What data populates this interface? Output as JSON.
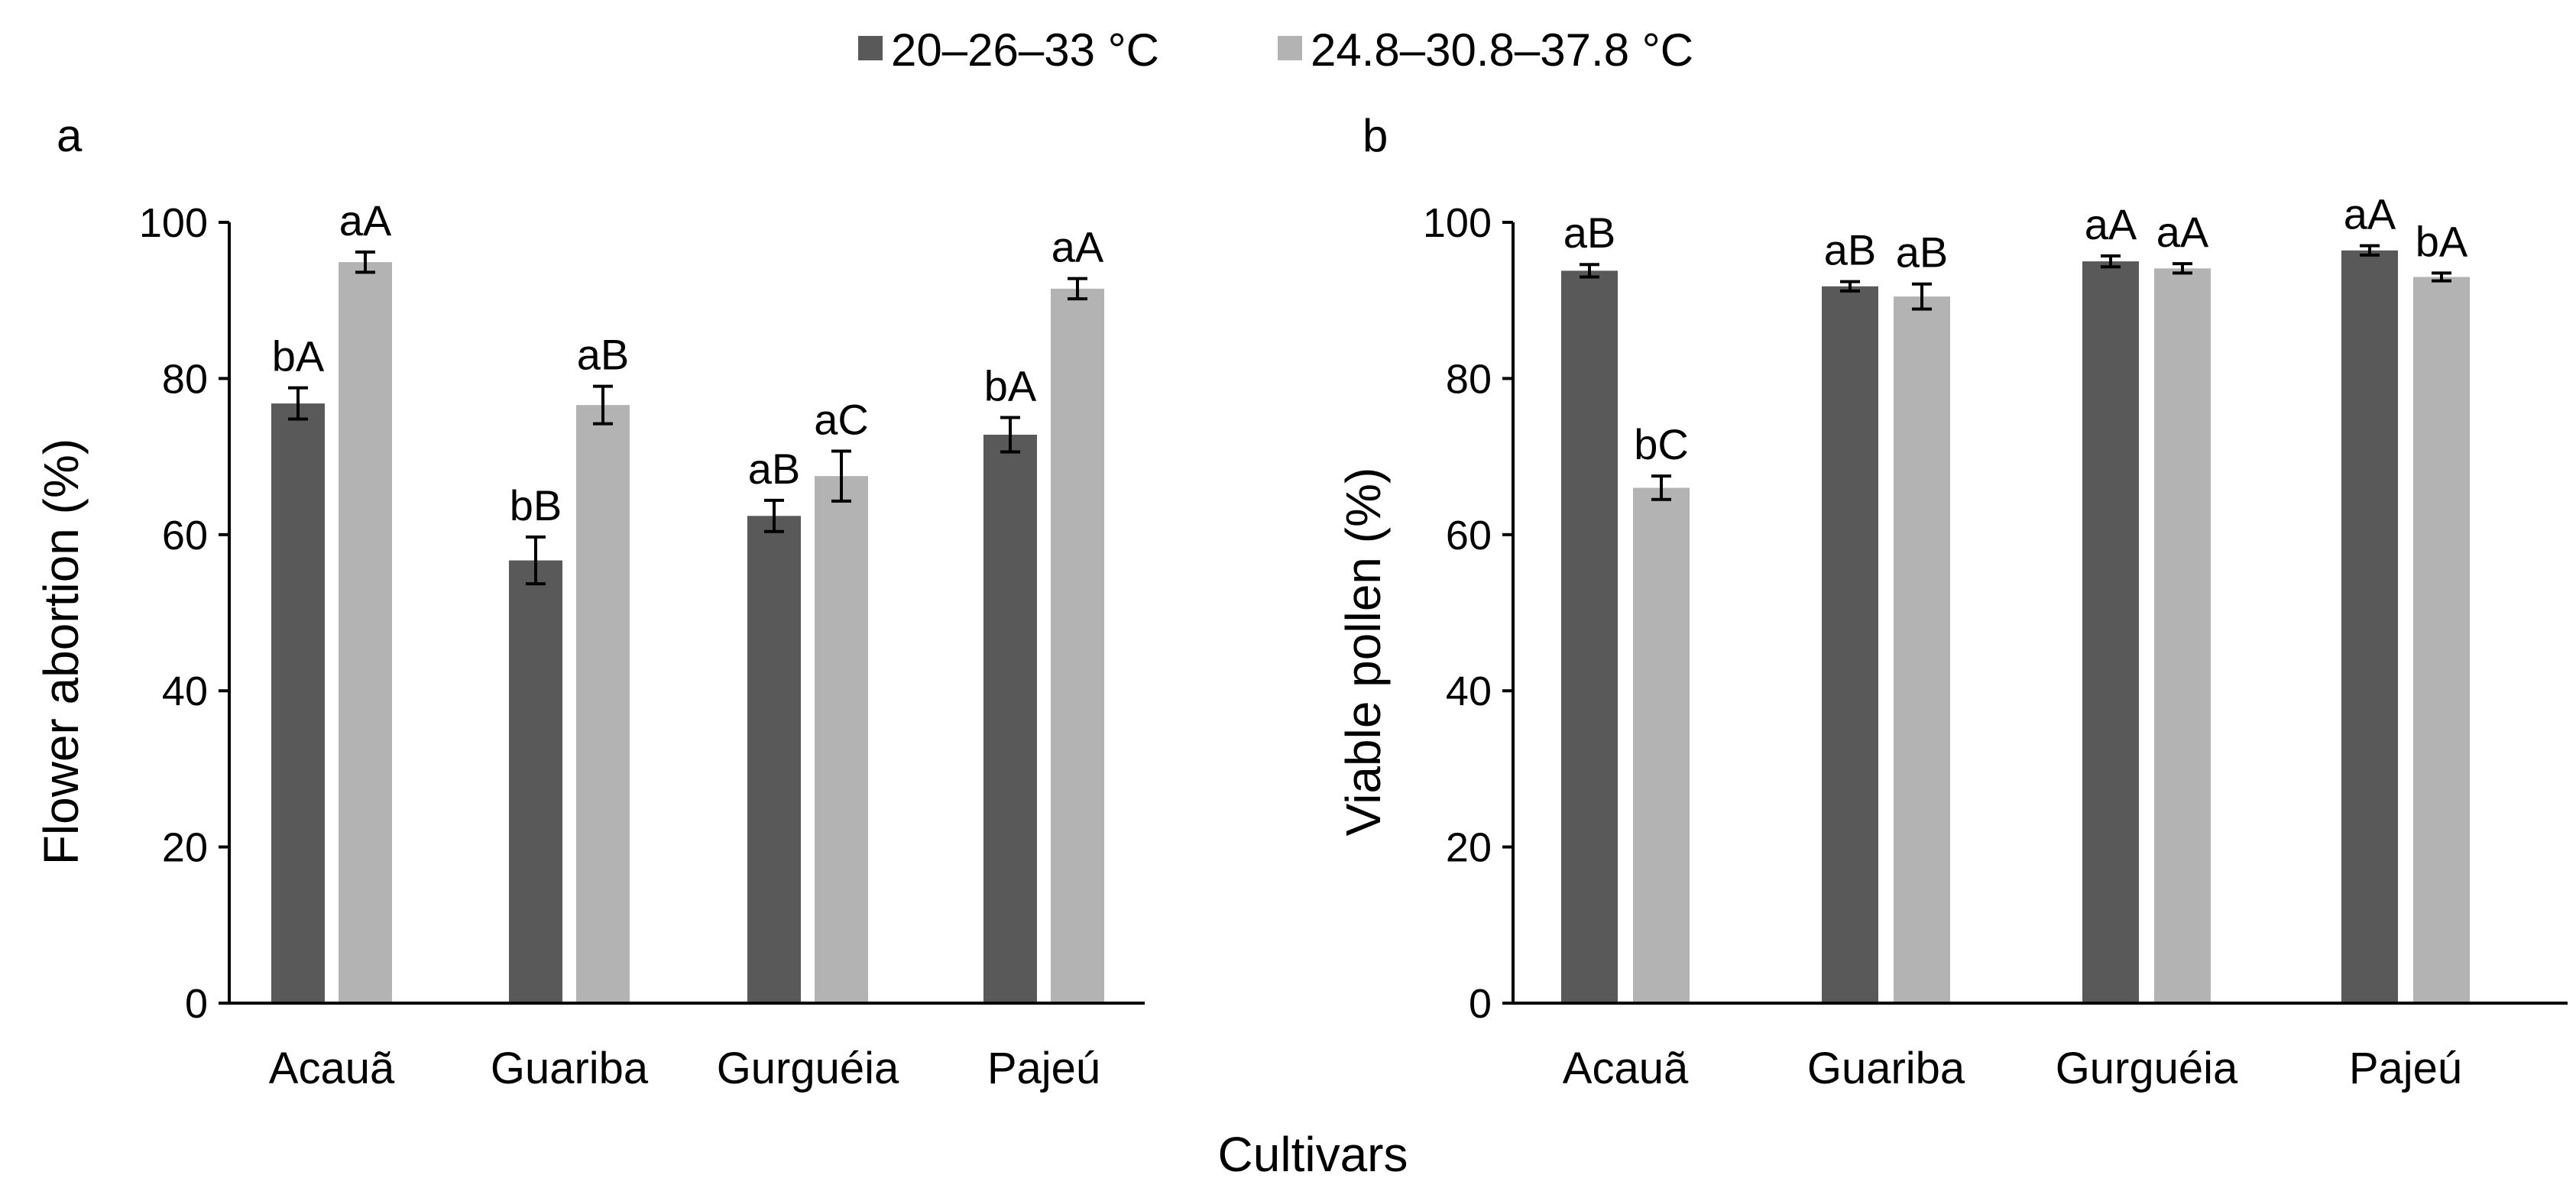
{
  "legend": [
    {
      "label": "20–26–33 °C",
      "color": "#595959"
    },
    {
      "label": "24.8–30.8–37.8 °C",
      "color": "#b3b3b3"
    }
  ],
  "shared_xlabel": "Cultivars",
  "chart_data": [
    {
      "type": "bar",
      "panel_label": "a",
      "title": "",
      "xlabel": "Cultivars",
      "ylabel": "Flower abortion (%)",
      "ylim": [
        0,
        100
      ],
      "yticks": [
        0,
        20,
        40,
        60,
        80,
        100
      ],
      "categories": [
        "Acauã",
        "Guariba",
        "Gurguéia",
        "Pajeú"
      ],
      "series": [
        {
          "name": "20–26–33 °C",
          "color": "#595959",
          "values": [
            76.8,
            56.7,
            62.4,
            72.8
          ],
          "errors": [
            2.0,
            3.0,
            2.0,
            2.2
          ],
          "labels": [
            "bA",
            "bB",
            "aB",
            "bA"
          ]
        },
        {
          "name": "24.8–30.8–37.8 °C",
          "color": "#b3b3b3",
          "values": [
            94.9,
            76.6,
            67.5,
            91.5
          ],
          "errors": [
            1.3,
            2.4,
            3.2,
            1.3
          ],
          "labels": [
            "aA",
            "aB",
            "aC",
            "aA"
          ]
        }
      ]
    },
    {
      "type": "bar",
      "panel_label": "b",
      "title": "",
      "xlabel": "Cultivars",
      "ylabel": "Viable pollen (%)",
      "ylim": [
        0,
        100
      ],
      "yticks": [
        0,
        20,
        40,
        60,
        80,
        100
      ],
      "categories": [
        "Acauã",
        "Guariba",
        "Gurguéia",
        "Pajeú"
      ],
      "series": [
        {
          "name": "20–26–33 °C",
          "color": "#595959",
          "values": [
            93.8,
            91.8,
            95.0,
            96.4
          ],
          "errors": [
            0.8,
            0.6,
            0.7,
            0.6
          ],
          "labels": [
            "aB",
            "aB",
            "aA",
            "aA"
          ]
        },
        {
          "name": "24.8–30.8–37.8 °C",
          "color": "#b3b3b3",
          "values": [
            66.0,
            90.5,
            94.1,
            93.0
          ],
          "errors": [
            1.5,
            1.6,
            0.6,
            0.5
          ],
          "labels": [
            "bC",
            "aB",
            "aA",
            "bA"
          ]
        }
      ]
    }
  ]
}
